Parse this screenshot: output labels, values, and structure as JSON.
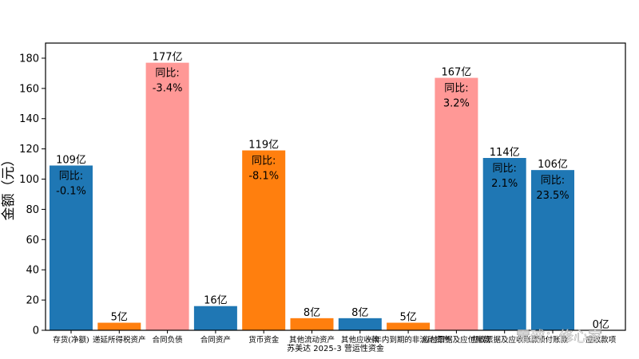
{
  "chart_data": {
    "type": "bar",
    "title": "",
    "xlabel": "苏美达 2025-3 营运性资金",
    "ylabel": "金额（元）",
    "ylim": [
      0,
      190
    ],
    "yticks": [
      0,
      20,
      40,
      60,
      80,
      100,
      120,
      140,
      160,
      180
    ],
    "grid": false,
    "yoy_label": "同比:",
    "categories": [
      "存货(净额)",
      "递延所得税资产",
      "合同负债",
      "合同资产",
      "货币资金",
      "其他流动资产",
      "其他应收款",
      "一年内到期的非流动资产",
      "应付票据及应付账款",
      "应收票据及应收账款",
      "预付账款",
      "应收款项"
    ],
    "values": [
      109,
      5,
      177,
      16,
      119,
      8,
      8,
      5,
      167,
      114,
      106,
      0
    ],
    "value_labels": [
      "109亿",
      "5亿",
      "177亿",
      "16亿",
      "119亿",
      "8亿",
      "8亿",
      "5亿",
      "167亿",
      "114亿",
      "106亿",
      "0亿"
    ],
    "yoy": [
      "-0.1%",
      "",
      "-3.4%",
      "",
      "-8.1%",
      "",
      "",
      "",
      "3.2%",
      "2.1%",
      "23.5%",
      ""
    ],
    "colors": [
      "#1f77b4",
      "#ff7f0e",
      "#ff9896",
      "#1f77b4",
      "#ff7f0e",
      "#ff7f0e",
      "#1f77b4",
      "#ff7f0e",
      "#ff9896",
      "#1f77b4",
      "#1f77b4",
      "#1f77b4"
    ]
  },
  "watermark": "雪球：修心家"
}
